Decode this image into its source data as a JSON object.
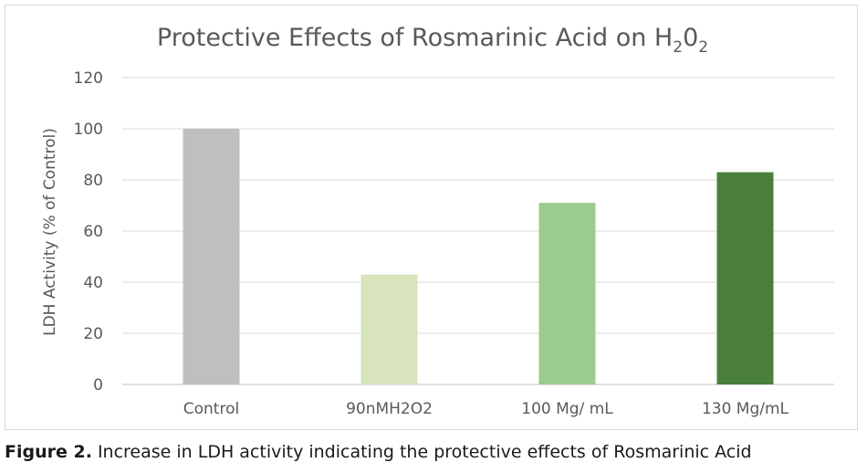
{
  "chart_data": {
    "type": "bar",
    "title": {
      "text": "Protective Effects of Rosmarinic Acid on H",
      "sub1": "2",
      "mid": "0",
      "sub2": "2"
    },
    "ylabel": "LDH Activity (% of Control)",
    "xlabel": "",
    "categories": [
      "Control",
      "90nMH2O2",
      "100 Mg/ mL",
      "130 Mg/mL"
    ],
    "values": [
      100,
      43,
      71,
      83
    ],
    "bar_colors": [
      "#bfbfbf",
      "#d7e4bc",
      "#9bcb8e",
      "#4a7f3c"
    ],
    "ylim": [
      0,
      120
    ],
    "yticks": [
      "0",
      "20",
      "40",
      "60",
      "80",
      "100",
      "120"
    ],
    "grid": true,
    "legend": "none"
  },
  "caption": {
    "label": "Figure 2.",
    "text": "Increase in LDH activity indicating the protective effects of Rosmarinic Acid"
  }
}
